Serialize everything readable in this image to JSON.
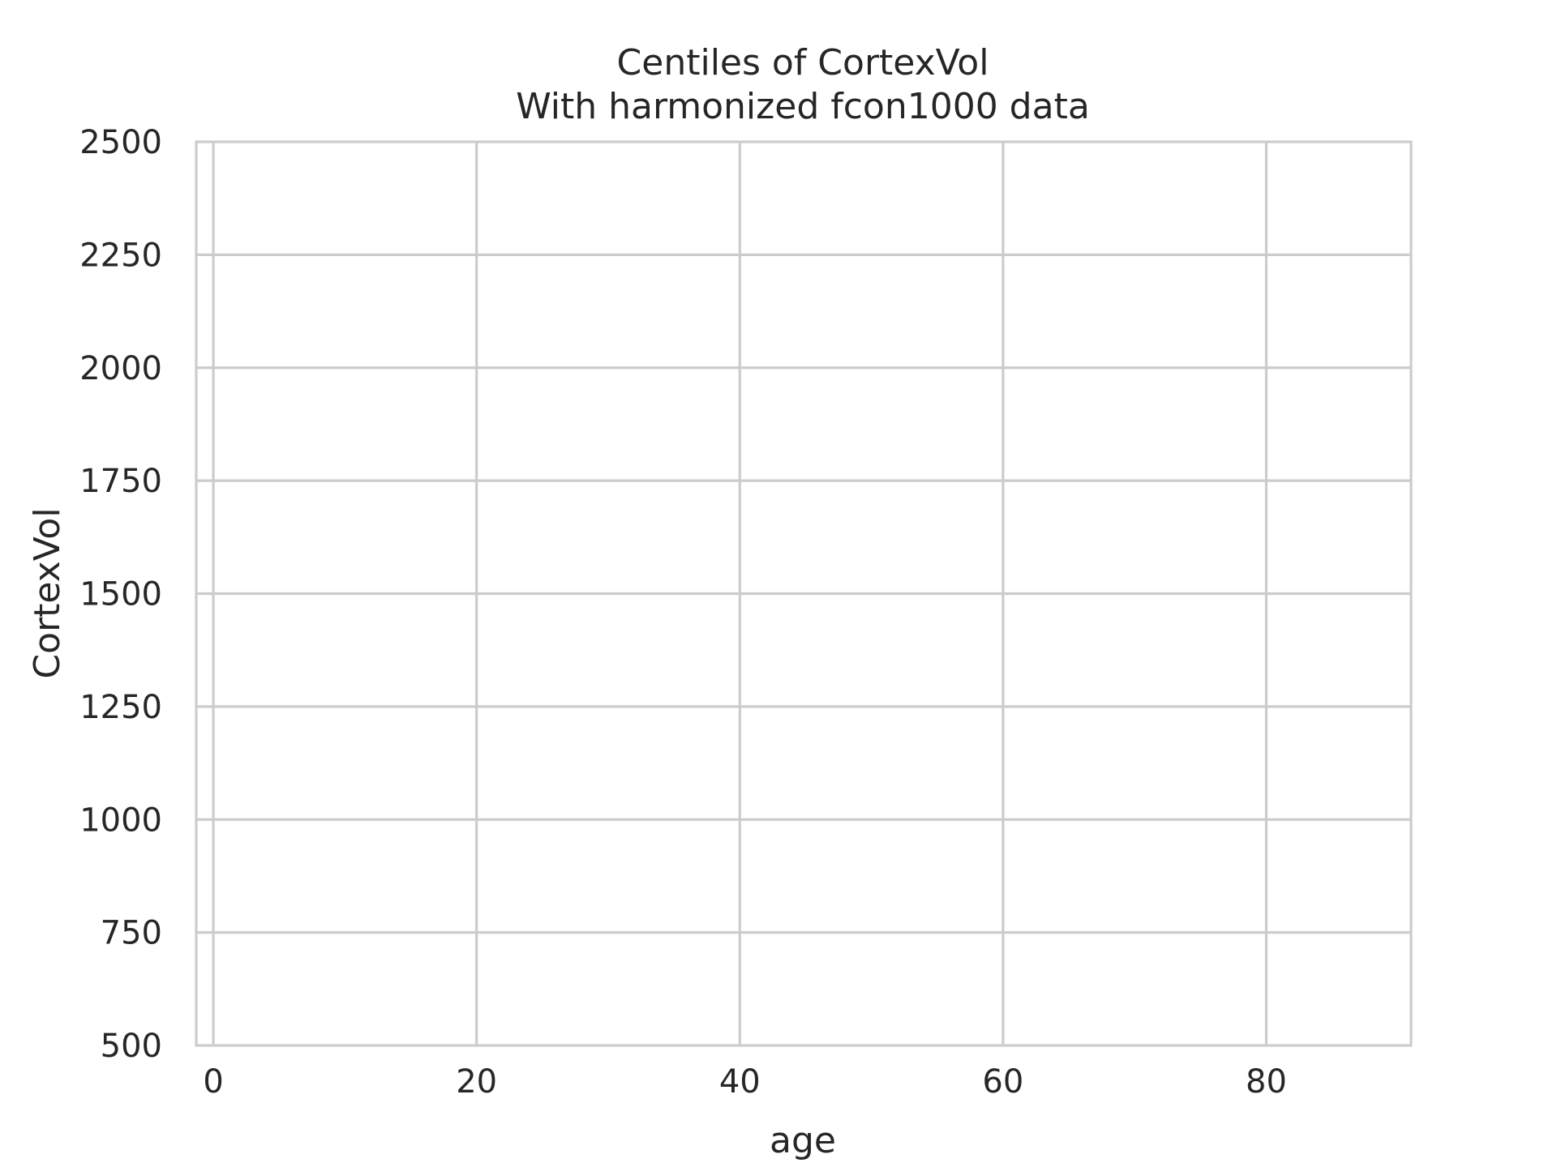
{
  "chart_data": {
    "type": "line",
    "title": "Centiles of CortexVol",
    "subtitle": "With harmonized fcon1000 data",
    "xlabel": "age",
    "ylabel": "CortexVol",
    "xlim": [
      -1.3,
      91
    ],
    "ylim": [
      500,
      2500
    ],
    "x_ticks": [
      0,
      20,
      40,
      60,
      80
    ],
    "y_ticks": [
      500,
      750,
      1000,
      1250,
      1500,
      1750,
      2000,
      2250,
      2500
    ],
    "grid": true,
    "series": []
  }
}
